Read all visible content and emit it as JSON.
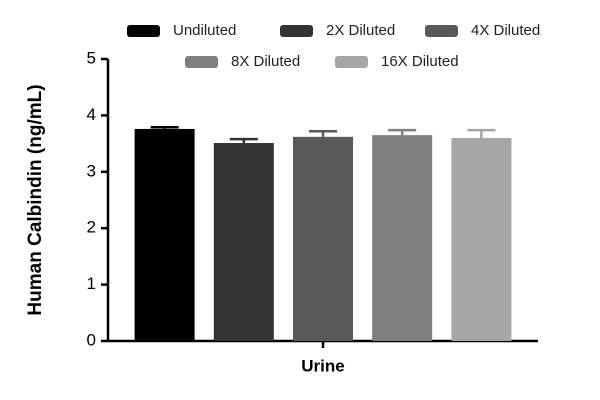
{
  "chart_data": {
    "type": "bar",
    "y_label": "Human Calbindin (ng/mL)",
    "categories": [
      "Urine"
    ],
    "series": [
      {
        "name": "Undiluted",
        "color": "#000000",
        "values": [
          3.76
        ],
        "errors": [
          0.03
        ]
      },
      {
        "name": "2X Diluted",
        "color": "#333333",
        "values": [
          3.51
        ],
        "errors": [
          0.07
        ]
      },
      {
        "name": "4X Diluted",
        "color": "#595959",
        "values": [
          3.62
        ],
        "errors": [
          0.1
        ]
      },
      {
        "name": "8X Diluted",
        "color": "#808080",
        "values": [
          3.65
        ],
        "errors": [
          0.09
        ]
      },
      {
        "name": "16X Diluted",
        "color": "#a6a6a6",
        "values": [
          3.6
        ],
        "errors": [
          0.14
        ]
      }
    ],
    "ylim": [
      0,
      5
    ],
    "yticks": [
      0,
      1,
      2,
      3,
      4,
      5
    ],
    "grid": false
  }
}
